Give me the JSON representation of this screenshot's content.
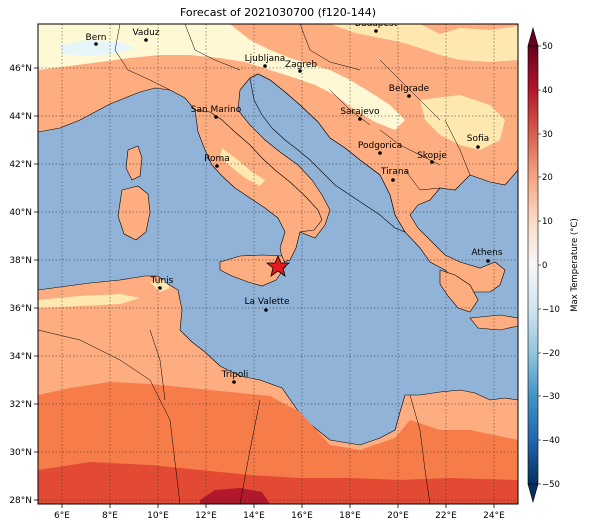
{
  "title": "Forecast of 2021030700 (f120-144)",
  "map": {
    "lon_ticks": [
      "6°E",
      "8°E",
      "10°E",
      "12°E",
      "14°E",
      "16°E",
      "18°E",
      "20°E",
      "22°E",
      "24°E"
    ],
    "lat_ticks": [
      "46°N",
      "44°N",
      "42°N",
      "40°N",
      "38°N",
      "36°N",
      "34°N",
      "32°N",
      "30°N",
      "28°N"
    ],
    "grid": true,
    "marker": {
      "type": "star",
      "color": "#e41a1c",
      "name": ""
    },
    "cities": [
      {
        "name": "Bern"
      },
      {
        "name": "Vaduz"
      },
      {
        "name": "Budapest"
      },
      {
        "name": "Ljubljana"
      },
      {
        "name": "Zagreb"
      },
      {
        "name": "Belgrade"
      },
      {
        "name": "San Marino"
      },
      {
        "name": "Sarajevo"
      },
      {
        "name": "Roma"
      },
      {
        "name": "Podgorica"
      },
      {
        "name": "Sofia"
      },
      {
        "name": "Skopje"
      },
      {
        "name": "Tirana"
      },
      {
        "name": "Athens"
      },
      {
        "name": "Tunis"
      },
      {
        "name": "La Valette"
      },
      {
        "name": "Tripoli"
      }
    ]
  },
  "colorbar": {
    "label": "Max Temperature (°C)",
    "ticks": [
      "50",
      "40",
      "30",
      "20",
      "10",
      "0",
      "−10",
      "−20",
      "−30",
      "−40",
      "−50"
    ],
    "colors": {
      "sea": "#91b3d7",
      "land_15_20": "#fdad7f",
      "land_20_25": "#f67c4a",
      "land_25_30": "#e34a33",
      "land_10_15": "#fee8b0",
      "land_5_10": "#fff8d4",
      "cold_0_5": "#e6f5fa",
      "deep_red": "#b2182b"
    }
  }
}
